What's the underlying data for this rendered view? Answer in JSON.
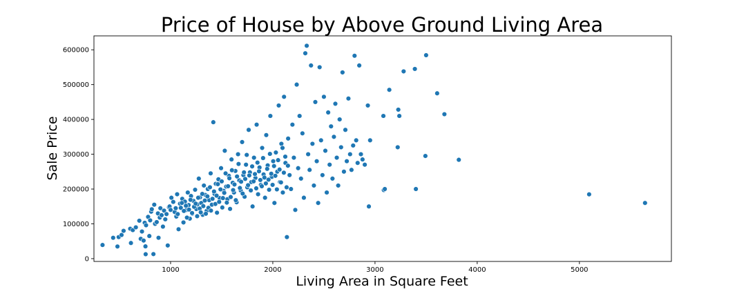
{
  "chart_data": {
    "type": "scatter",
    "title": "Price of House by Above Ground Living Area",
    "xlabel": "Living Area in Square Feet",
    "ylabel": "Sale Price",
    "xlim": [
      250,
      5900
    ],
    "ylim": [
      -8000,
      640000
    ],
    "xticks": [
      1000,
      2000,
      3000,
      4000,
      5000
    ],
    "yticks": [
      0,
      100000,
      200000,
      300000,
      400000,
      500000,
      600000
    ],
    "grid": false,
    "color": "#1f77b4",
    "points": [
      [
        334,
        39300
      ],
      [
        438,
        60000
      ],
      [
        480,
        35000
      ],
      [
        492,
        62000
      ],
      [
        520,
        68000
      ],
      [
        540,
        80000
      ],
      [
        605,
        86000
      ],
      [
        612,
        45000
      ],
      [
        630,
        82000
      ],
      [
        660,
        90000
      ],
      [
        694,
        109000
      ],
      [
        708,
        57000
      ],
      [
        720,
        78000
      ],
      [
        736,
        52000
      ],
      [
        747,
        103000
      ],
      [
        754,
        35311
      ],
      [
        756,
        12789
      ],
      [
        760,
        96000
      ],
      [
        780,
        120000
      ],
      [
        792,
        65000
      ],
      [
        800,
        110000
      ],
      [
        810,
        135000
      ],
      [
        816,
        142000
      ],
      [
        832,
        13100
      ],
      [
        840,
        155000
      ],
      [
        848,
        100000
      ],
      [
        864,
        105000
      ],
      [
        876,
        130000
      ],
      [
        882,
        60000
      ],
      [
        894,
        118000
      ],
      [
        900,
        145000
      ],
      [
        912,
        125000
      ],
      [
        925,
        92000
      ],
      [
        936,
        138000
      ],
      [
        948,
        113000
      ],
      [
        960,
        128000
      ],
      [
        972,
        37900
      ],
      [
        984,
        148000
      ],
      [
        990,
        150000
      ],
      [
        1000,
        140000
      ],
      [
        1008,
        175000
      ],
      [
        1026,
        163000
      ],
      [
        1040,
        134000
      ],
      [
        1056,
        121000
      ],
      [
        1064,
        185000
      ],
      [
        1078,
        84500
      ],
      [
        1092,
        158000
      ],
      [
        1100,
        146000
      ],
      [
        1114,
        172000
      ],
      [
        1126,
        104000
      ],
      [
        1140,
        164000
      ],
      [
        1152,
        139500
      ],
      [
        1168,
        190000
      ],
      [
        1176,
        154000
      ],
      [
        1188,
        115000
      ],
      [
        1200,
        180000
      ],
      [
        1212,
        129000
      ],
      [
        1224,
        166000
      ],
      [
        1240,
        198000
      ],
      [
        1252,
        142500
      ],
      [
        1262,
        156000
      ],
      [
        1276,
        230000
      ],
      [
        1288,
        176000
      ],
      [
        1300,
        160000
      ],
      [
        1314,
        126000
      ],
      [
        1326,
        210000
      ],
      [
        1340,
        183000
      ],
      [
        1352,
        137000
      ],
      [
        1364,
        200000
      ],
      [
        1378,
        168000
      ],
      [
        1392,
        245000
      ],
      [
        1404,
        155000
      ],
      [
        1418,
        392000
      ],
      [
        1430,
        186000
      ],
      [
        1442,
        215000
      ],
      [
        1454,
        132000
      ],
      [
        1468,
        228000
      ],
      [
        1480,
        174000
      ],
      [
        1494,
        260000
      ],
      [
        1506,
        147000
      ],
      [
        1518,
        195000
      ],
      [
        1530,
        310000
      ],
      [
        1544,
        207000
      ],
      [
        1556,
        171000
      ],
      [
        1570,
        238000
      ],
      [
        1582,
        143000
      ],
      [
        1596,
        285000
      ],
      [
        1608,
        218000
      ],
      [
        1620,
        190000
      ],
      [
        1634,
        252000
      ],
      [
        1646,
        162000
      ],
      [
        1660,
        300000
      ],
      [
        1672,
        225000
      ],
      [
        1686,
        196000
      ],
      [
        1700,
        335000
      ],
      [
        1712,
        240000
      ],
      [
        1724,
        178000
      ],
      [
        1738,
        270000
      ],
      [
        1750,
        205000
      ],
      [
        1764,
        370000
      ],
      [
        1776,
        248000
      ],
      [
        1790,
        220000
      ],
      [
        1802,
        150000
      ],
      [
        1816,
        290000
      ],
      [
        1830,
        232000
      ],
      [
        1842,
        385000
      ],
      [
        1856,
        185000
      ],
      [
        1870,
        262000
      ],
      [
        1884,
        212000
      ],
      [
        1896,
        318000
      ],
      [
        1910,
        242000
      ],
      [
        1924,
        175000
      ],
      [
        1936,
        355000
      ],
      [
        1950,
        268000
      ],
      [
        1964,
        198000
      ],
      [
        1976,
        410000
      ],
      [
        1990,
        235000
      ],
      [
        2004,
        280000
      ],
      [
        2016,
        160000
      ],
      [
        2030,
        305000
      ],
      [
        2044,
        250000
      ],
      [
        2058,
        440000
      ],
      [
        2070,
        220000
      ],
      [
        2084,
        330000
      ],
      [
        2098,
        190000
      ],
      [
        2110,
        465000
      ],
      [
        2124,
        275000
      ],
      [
        2138,
        62000
      ],
      [
        2150,
        345000
      ],
      [
        2164,
        240000
      ],
      [
        2178,
        200000
      ],
      [
        2192,
        385000
      ],
      [
        2206,
        290000
      ],
      [
        2220,
        140000
      ],
      [
        2234,
        500000
      ],
      [
        2248,
        260000
      ],
      [
        2262,
        410000
      ],
      [
        2276,
        230000
      ],
      [
        2290,
        360000
      ],
      [
        2304,
        175000
      ],
      [
        2318,
        590000
      ],
      [
        2332,
        611657
      ],
      [
        2346,
        300000
      ],
      [
        2360,
        255000
      ],
      [
        2374,
        555000
      ],
      [
        2388,
        330000
      ],
      [
        2402,
        210000
      ],
      [
        2416,
        450000
      ],
      [
        2430,
        280000
      ],
      [
        2444,
        160000
      ],
      [
        2458,
        550000
      ],
      [
        2472,
        340000
      ],
      [
        2486,
        240000
      ],
      [
        2500,
        465000
      ],
      [
        2514,
        310000
      ],
      [
        2528,
        190000
      ],
      [
        2542,
        420000
      ],
      [
        2556,
        270000
      ],
      [
        2570,
        380000
      ],
      [
        2584,
        230000
      ],
      [
        2598,
        350000
      ],
      [
        2612,
        445000
      ],
      [
        2626,
        290000
      ],
      [
        2640,
        210000
      ],
      [
        2654,
        400000
      ],
      [
        2668,
        320000
      ],
      [
        2682,
        535000
      ],
      [
        2696,
        250000
      ],
      [
        2710,
        370000
      ],
      [
        2724,
        280000
      ],
      [
        2740,
        460000
      ],
      [
        2756,
        300000
      ],
      [
        2770,
        255000
      ],
      [
        2786,
        325000
      ],
      [
        2800,
        582933
      ],
      [
        2816,
        340000
      ],
      [
        2830,
        275000
      ],
      [
        2846,
        555000
      ],
      [
        2862,
        300000
      ],
      [
        2878,
        285000
      ],
      [
        2900,
        270000
      ],
      [
        2930,
        440000
      ],
      [
        2940,
        150000
      ],
      [
        2952,
        340000
      ],
      [
        3082,
        410000
      ],
      [
        3086,
        197000
      ],
      [
        3096,
        200000
      ],
      [
        3140,
        485000
      ],
      [
        3222,
        320000
      ],
      [
        3228,
        428000
      ],
      [
        3238,
        410000
      ],
      [
        3280,
        538000
      ],
      [
        3390,
        545000
      ],
      [
        3400,
        200000
      ],
      [
        3493,
        295000
      ],
      [
        3500,
        584500
      ],
      [
        3608,
        475000
      ],
      [
        3679,
        415000
      ],
      [
        3820,
        284000
      ],
      [
        5095,
        184750
      ],
      [
        5642,
        160000
      ],
      [
        1050,
        145000
      ],
      [
        1070,
        128000
      ],
      [
        1110,
        160000
      ],
      [
        1130,
        137000
      ],
      [
        1150,
        152000
      ],
      [
        1160,
        118000
      ],
      [
        1180,
        141000
      ],
      [
        1195,
        169000
      ],
      [
        1210,
        131000
      ],
      [
        1230,
        149000
      ],
      [
        1245,
        158000
      ],
      [
        1260,
        122000
      ],
      [
        1270,
        175000
      ],
      [
        1285,
        144000
      ],
      [
        1295,
        133000
      ],
      [
        1310,
        186000
      ],
      [
        1320,
        151000
      ],
      [
        1335,
        167000
      ],
      [
        1345,
        129000
      ],
      [
        1360,
        179000
      ],
      [
        1370,
        146000
      ],
      [
        1385,
        205000
      ],
      [
        1395,
        138000
      ],
      [
        1410,
        172000
      ],
      [
        1425,
        193000
      ],
      [
        1438,
        157000
      ],
      [
        1450,
        181000
      ],
      [
        1462,
        214000
      ],
      [
        1475,
        163000
      ],
      [
        1488,
        199000
      ],
      [
        1500,
        222000
      ],
      [
        1512,
        174000
      ],
      [
        1525,
        189000
      ],
      [
        1538,
        245000
      ],
      [
        1550,
        161000
      ],
      [
        1562,
        208000
      ],
      [
        1575,
        231000
      ],
      [
        1588,
        177000
      ],
      [
        1600,
        254000
      ],
      [
        1612,
        197000
      ],
      [
        1625,
        213000
      ],
      [
        1638,
        168000
      ],
      [
        1650,
        236000
      ],
      [
        1665,
        272000
      ],
      [
        1678,
        203000
      ],
      [
        1690,
        221000
      ],
      [
        1705,
        187000
      ],
      [
        1718,
        248000
      ],
      [
        1730,
        229000
      ],
      [
        1745,
        298000
      ],
      [
        1758,
        211000
      ],
      [
        1770,
        239000
      ],
      [
        1785,
        196000
      ],
      [
        1798,
        265000
      ],
      [
        1812,
        222000
      ],
      [
        1825,
        243000
      ],
      [
        1838,
        202000
      ],
      [
        1850,
        276000
      ],
      [
        1865,
        251000
      ],
      [
        1878,
        226000
      ],
      [
        1892,
        208000
      ],
      [
        1905,
        289000
      ],
      [
        1918,
        233000
      ],
      [
        1932,
        216000
      ],
      [
        1945,
        258000
      ],
      [
        1958,
        227000
      ],
      [
        1972,
        301000
      ],
      [
        1985,
        244000
      ],
      [
        1998,
        212000
      ],
      [
        2012,
        266000
      ],
      [
        2025,
        238000
      ],
      [
        2040,
        199000
      ],
      [
        2052,
        283000
      ],
      [
        2066,
        256000
      ],
      [
        2080,
        219000
      ],
      [
        2095,
        318000
      ],
      [
        2108,
        247000
      ],
      [
        2122,
        293000
      ],
      [
        2135,
        205000
      ],
      [
        2148,
        267000
      ]
    ]
  }
}
